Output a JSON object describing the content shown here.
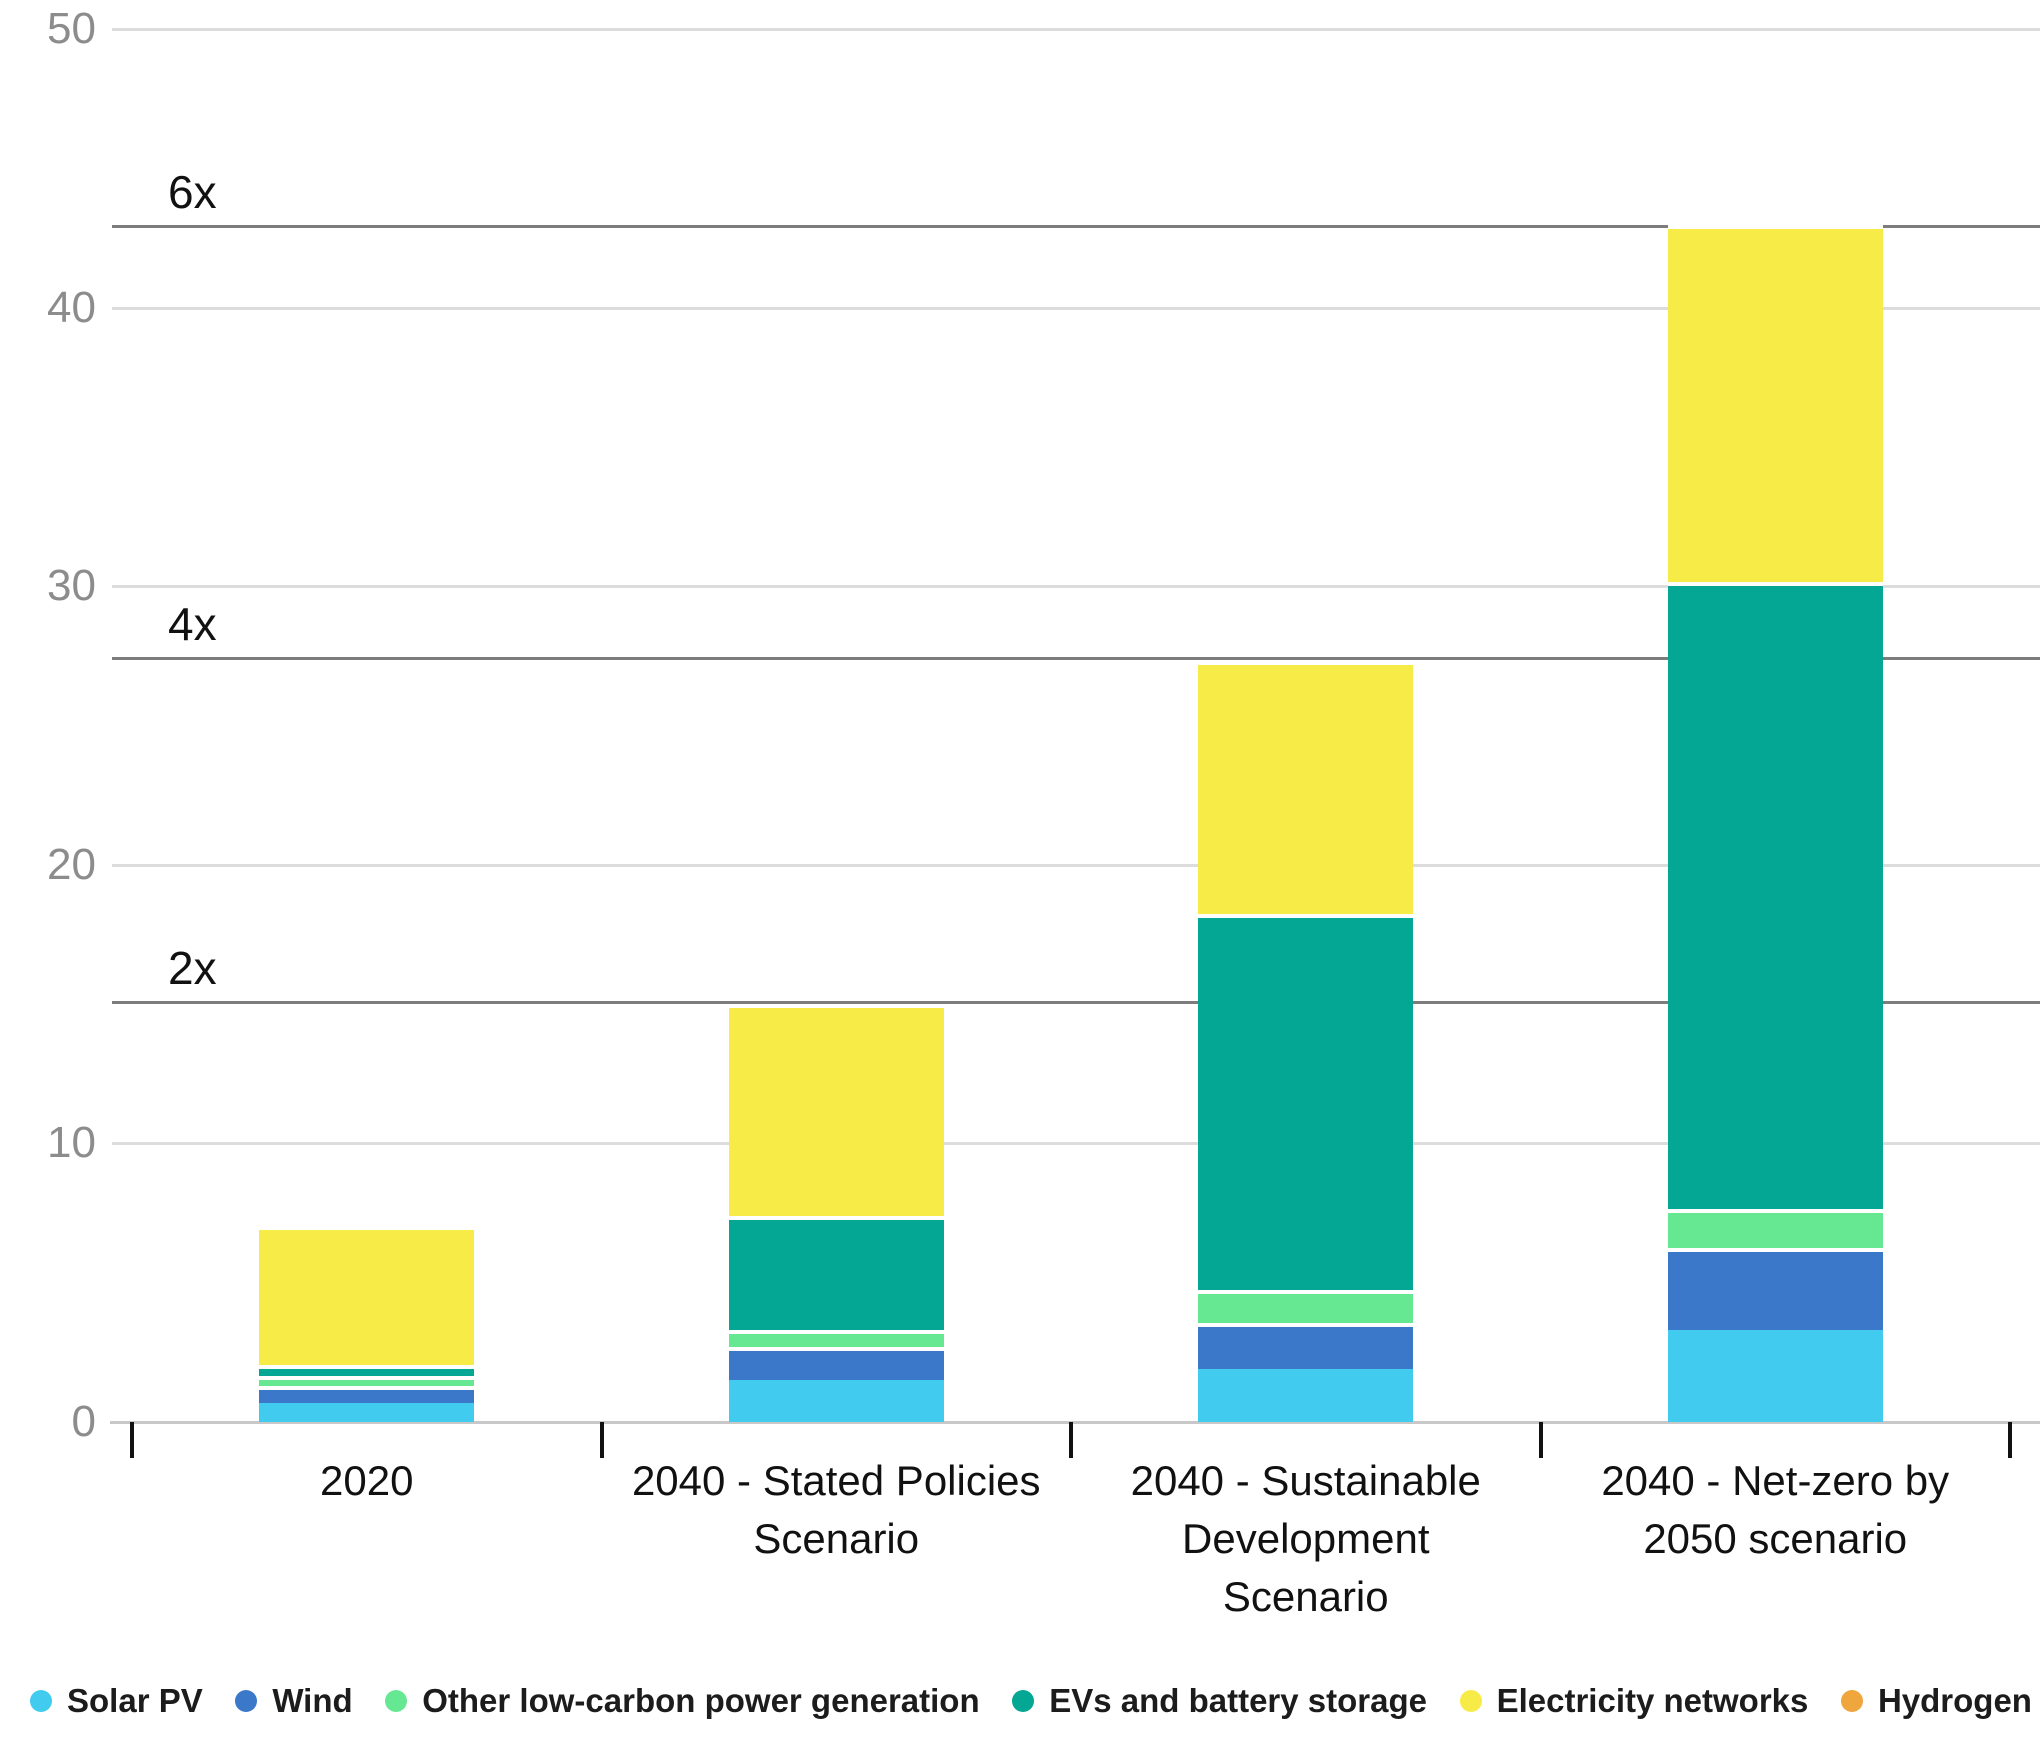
{
  "chart_data": {
    "type": "bar",
    "stacked": true,
    "title": "",
    "xlabel": "",
    "ylabel": "",
    "ylim": [
      0,
      50
    ],
    "yticks": [
      0,
      10,
      20,
      30,
      40,
      50
    ],
    "grid": true,
    "legend_position": "bottom",
    "categories": [
      "2020",
      "2040 - Stated Policies Scenario",
      "2040 - Sustainable Development Scenario",
      "2040 - Net-zero by 2050 scenario"
    ],
    "category_label_lines": [
      [
        "2020"
      ],
      [
        "2040 - Stated Policies",
        "Scenario"
      ],
      [
        "2040 - Sustainable",
        "Development",
        "Scenario"
      ],
      [
        "2040 - Net-zero by",
        "2050 scenario"
      ]
    ],
    "series": [
      {
        "name": "Solar PV",
        "color": "#41cbee",
        "values": [
          0.7,
          1.5,
          1.9,
          3.3
        ]
      },
      {
        "name": "Wind",
        "color": "#3b78c9",
        "values": [
          0.6,
          1.2,
          1.65,
          2.95
        ]
      },
      {
        "name": "Other low-carbon power generation",
        "color": "#66e893",
        "values": [
          0.35,
          0.6,
          1.2,
          1.4
        ]
      },
      {
        "name": "EVs and battery storage",
        "color": "#04a793",
        "values": [
          0.4,
          4.1,
          13.5,
          22.5
        ]
      },
      {
        "name": "Electricity networks",
        "color": "#f7eb48",
        "values": [
          5.0,
          7.6,
          9.05,
          12.8
        ]
      },
      {
        "name": "Hydrogen",
        "color": "#eea63d",
        "values": [
          0,
          0,
          0,
          0
        ]
      }
    ],
    "totals": [
      7.05,
      15.0,
      27.3,
      42.95
    ],
    "reference_lines": [
      {
        "label": "2x",
        "value": 15.05
      },
      {
        "label": "4x",
        "value": 27.4
      },
      {
        "label": "6x",
        "value": 42.9
      }
    ]
  },
  "colors": {
    "background": "#ffffff",
    "gridline": "#dcdcdc",
    "axis_line": "#c8c8c8",
    "reference_line": "#7d7d7d",
    "ytick_label": "#8c8c8c",
    "text": "#111111"
  }
}
